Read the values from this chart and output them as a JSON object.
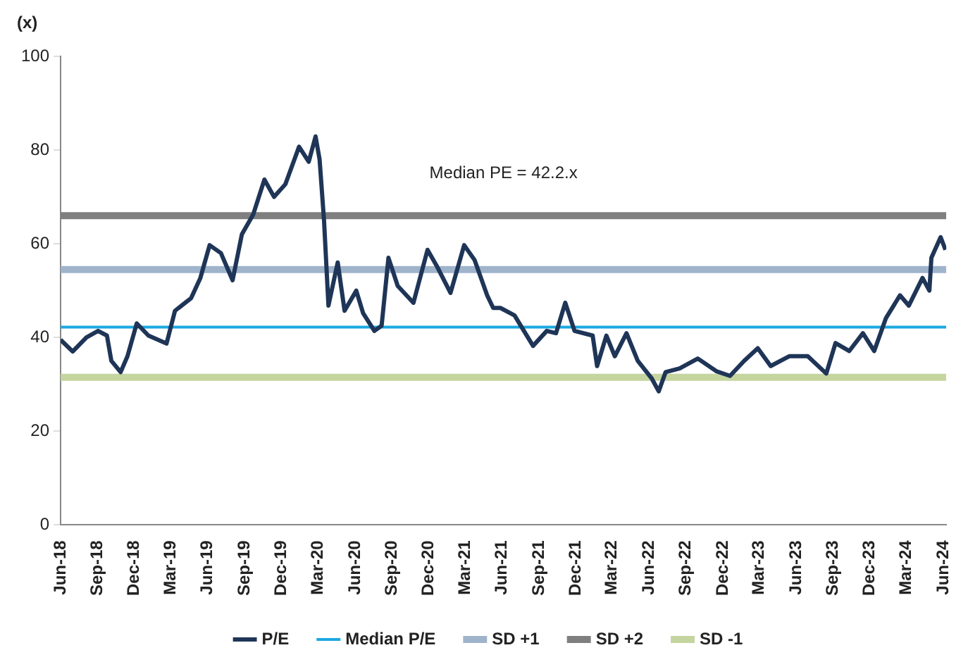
{
  "chart_data": {
    "type": "line",
    "ylabel": "(x)",
    "annotations": [
      "Median PE = 42.2.x"
    ],
    "xlim": [
      "2018-06-01",
      "2024-06-08"
    ],
    "ylim": [
      0,
      100
    ],
    "yticks": [
      0,
      20,
      40,
      60,
      80,
      100
    ],
    "xticks": [
      {
        "value": "2018-06-01",
        "label": "Jun-18"
      },
      {
        "value": "2018-09-01",
        "label": "Sep-18"
      },
      {
        "value": "2018-12-01",
        "label": "Dec-18"
      },
      {
        "value": "2019-03-01",
        "label": "Mar-19"
      },
      {
        "value": "2019-06-01",
        "label": "Jun-19"
      },
      {
        "value": "2019-09-01",
        "label": "Sep-19"
      },
      {
        "value": "2019-12-01",
        "label": "Dec-19"
      },
      {
        "value": "2020-03-01",
        "label": "Mar-20"
      },
      {
        "value": "2020-06-01",
        "label": "Jun-20"
      },
      {
        "value": "2020-09-01",
        "label": "Sep-20"
      },
      {
        "value": "2020-12-01",
        "label": "Dec-20"
      },
      {
        "value": "2021-03-01",
        "label": "Mar-21"
      },
      {
        "value": "2021-06-01",
        "label": "Jun-21"
      },
      {
        "value": "2021-09-01",
        "label": "Sep-21"
      },
      {
        "value": "2021-12-01",
        "label": "Dec-21"
      },
      {
        "value": "2022-03-01",
        "label": "Mar-22"
      },
      {
        "value": "2022-06-01",
        "label": "Jun-22"
      },
      {
        "value": "2022-09-01",
        "label": "Sep-22"
      },
      {
        "value": "2022-12-01",
        "label": "Dec-22"
      },
      {
        "value": "2023-03-01",
        "label": "Mar-23"
      },
      {
        "value": "2023-06-01",
        "label": "Jun-23"
      },
      {
        "value": "2023-09-01",
        "label": "Sep-23"
      },
      {
        "value": "2023-12-01",
        "label": "Dec-23"
      },
      {
        "value": "2024-03-01",
        "label": "Mar-24"
      },
      {
        "value": "2024-06-01",
        "label": "Jun-24"
      }
    ],
    "grid": false,
    "legend": "bottom",
    "marker": "none",
    "line_style": "solid",
    "series": [
      {
        "name": "P/E",
        "color": "#1f3557",
        "x": [
          "2018-06-01",
          "2018-07-01",
          "2018-08-04",
          "2018-09-02",
          "2018-09-24",
          "2018-10-05",
          "2018-10-28",
          "2018-11-14",
          "2018-12-07",
          "2019-01-05",
          "2019-02-19",
          "2019-03-12",
          "2019-04-21",
          "2019-05-14",
          "2019-06-06",
          "2019-07-04",
          "2019-08-02",
          "2019-08-25",
          "2019-09-22",
          "2019-10-20",
          "2019-11-13",
          "2019-12-11",
          "2020-01-14",
          "2020-02-07",
          "2020-02-24",
          "2020-03-05",
          "2020-03-16",
          "2020-03-27",
          "2020-04-19",
          "2020-05-06",
          "2020-06-04",
          "2020-06-21",
          "2020-07-19",
          "2020-08-06",
          "2020-08-23",
          "2020-09-15",
          "2020-10-24",
          "2020-11-28",
          "2020-12-20",
          "2021-01-24",
          "2021-02-27",
          "2021-03-25",
          "2021-04-25",
          "2021-05-10",
          "2021-05-28",
          "2021-07-02",
          "2021-08-17",
          "2021-09-20",
          "2021-10-13",
          "2021-11-05",
          "2021-11-28",
          "2022-01-12",
          "2022-01-23",
          "2022-02-15",
          "2022-03-08",
          "2022-04-06",
          "2022-05-04",
          "2022-06-08",
          "2022-06-25",
          "2022-07-12",
          "2022-08-16",
          "2022-09-30",
          "2022-11-15",
          "2022-12-19",
          "2023-01-23",
          "2023-02-26",
          "2023-03-30",
          "2023-05-15",
          "2023-06-30",
          "2023-08-15",
          "2023-09-07",
          "2023-10-11",
          "2023-11-14",
          "2023-12-12",
          "2024-01-10",
          "2024-02-14",
          "2024-03-07",
          "2024-04-10",
          "2024-04-27",
          "2024-05-02",
          "2024-05-25",
          "2024-06-06"
        ],
        "values": [
          39.5,
          37,
          40,
          41.4,
          40.4,
          35,
          32.6,
          36,
          43,
          40.4,
          38.7,
          45.7,
          48.4,
          52.7,
          59.7,
          58,
          52.2,
          62,
          66.2,
          73.7,
          70,
          72.7,
          80.7,
          77.5,
          82.9,
          78,
          65,
          46.8,
          56,
          45.7,
          50,
          45.2,
          41.4,
          42.5,
          57,
          51,
          47.4,
          58.7,
          55.4,
          49.5,
          59.7,
          56.5,
          49,
          46.3,
          46.3,
          44.7,
          38.2,
          41.4,
          40.9,
          47.4,
          41.4,
          40.4,
          33.9,
          40.4,
          36,
          40.9,
          35,
          31.2,
          28.5,
          32.6,
          33.4,
          35.5,
          32.8,
          31.8,
          35,
          37.7,
          33.9,
          36,
          36,
          32.3,
          38.8,
          37.1,
          40.9,
          37.1,
          44.1,
          49,
          46.8,
          52.7,
          50,
          57,
          61.4,
          58.7
        ]
      },
      {
        "name": "Median P/E",
        "color": "#1ba9e1",
        "x": [
          "2018-06-01",
          "2024-06-08"
        ],
        "values": [
          42.2,
          42.2
        ]
      },
      {
        "name": "SD +1",
        "color": "#9fb3cb",
        "x": [
          "2018-06-01",
          "2024-06-08"
        ],
        "values": [
          54.5,
          54.5
        ]
      },
      {
        "name": "SD +2",
        "color": "#7f7f7f",
        "x": [
          "2018-06-01",
          "2024-06-08"
        ],
        "values": [
          66,
          66
        ]
      },
      {
        "name": "SD -1",
        "color": "#c4d59f",
        "x": [
          "2018-06-01",
          "2024-06-08"
        ],
        "values": [
          31.5,
          31.5
        ]
      }
    ]
  }
}
